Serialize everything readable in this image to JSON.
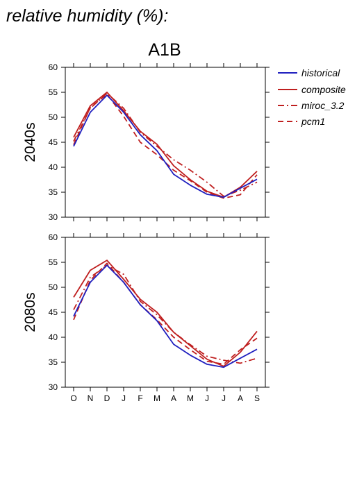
{
  "page_title": "relative humidity (%):",
  "scenario_title": "A1B",
  "legend": {
    "historical": "historical",
    "composite": "composite",
    "miroc": "miroc_3.2",
    "pcm": "pcm1"
  },
  "colors": {
    "historical": "#1f1fbf",
    "composite": "#bf1f1f",
    "miroc": "#bf1f1f",
    "pcm": "#bf1f1f"
  },
  "line_styles": {
    "historical": "solid",
    "composite": "solid",
    "miroc": "dash-dot",
    "pcm": "dashed"
  },
  "chart_data": [
    {
      "type": "line",
      "panel_label": "2040s",
      "categories": [
        "O",
        "N",
        "D",
        "J",
        "F",
        "M",
        "A",
        "M",
        "J",
        "J",
        "A",
        "S"
      ],
      "ylim": [
        30,
        60
      ],
      "y_ticks": [
        30,
        35,
        40,
        45,
        50,
        55,
        60
      ],
      "series": [
        {
          "name": "historical",
          "key": "historical",
          "values": [
            44.2,
            51.0,
            54.4,
            51.0,
            46.5,
            43.3,
            38.6,
            36.4,
            34.6,
            34.0,
            35.8,
            37.6
          ]
        },
        {
          "name": "composite",
          "key": "composite",
          "values": [
            46.0,
            52.3,
            55.0,
            51.3,
            47.2,
            44.6,
            40.3,
            37.5,
            35.2,
            34.0,
            36.0,
            39.2
          ]
        },
        {
          "name": "miroc_3.2",
          "key": "miroc",
          "values": [
            45.2,
            51.8,
            54.8,
            51.8,
            47.0,
            44.2,
            41.5,
            39.4,
            37.0,
            34.2,
            35.4,
            37.0
          ]
        },
        {
          "name": "pcm1",
          "key": "pcm",
          "values": [
            44.5,
            52.0,
            54.6,
            50.2,
            45.0,
            42.5,
            39.4,
            37.3,
            35.0,
            33.8,
            34.5,
            38.5
          ]
        }
      ]
    },
    {
      "type": "line",
      "panel_label": "2080s",
      "categories": [
        "O",
        "N",
        "D",
        "J",
        "F",
        "M",
        "A",
        "M",
        "J",
        "J",
        "A",
        "S"
      ],
      "ylim": [
        30,
        60
      ],
      "y_ticks": [
        30,
        35,
        40,
        45,
        50,
        55,
        60
      ],
      "series": [
        {
          "name": "historical",
          "key": "historical",
          "values": [
            44.2,
            51.0,
            54.4,
            51.0,
            46.5,
            43.3,
            38.6,
            36.4,
            34.6,
            34.0,
            35.8,
            37.6
          ]
        },
        {
          "name": "composite",
          "key": "composite",
          "values": [
            48.0,
            53.4,
            55.4,
            51.6,
            47.6,
            45.0,
            41.0,
            38.3,
            35.6,
            34.2,
            37.0,
            41.2
          ]
        },
        {
          "name": "miroc_3.2",
          "key": "miroc",
          "values": [
            45.5,
            52.0,
            54.4,
            52.6,
            47.2,
            44.5,
            41.0,
            38.5,
            36.2,
            35.4,
            34.8,
            35.8
          ]
        },
        {
          "name": "pcm1",
          "key": "pcm",
          "values": [
            43.5,
            51.4,
            54.8,
            51.0,
            46.5,
            43.5,
            40.0,
            37.5,
            35.2,
            34.6,
            37.5,
            39.8
          ]
        }
      ]
    }
  ]
}
